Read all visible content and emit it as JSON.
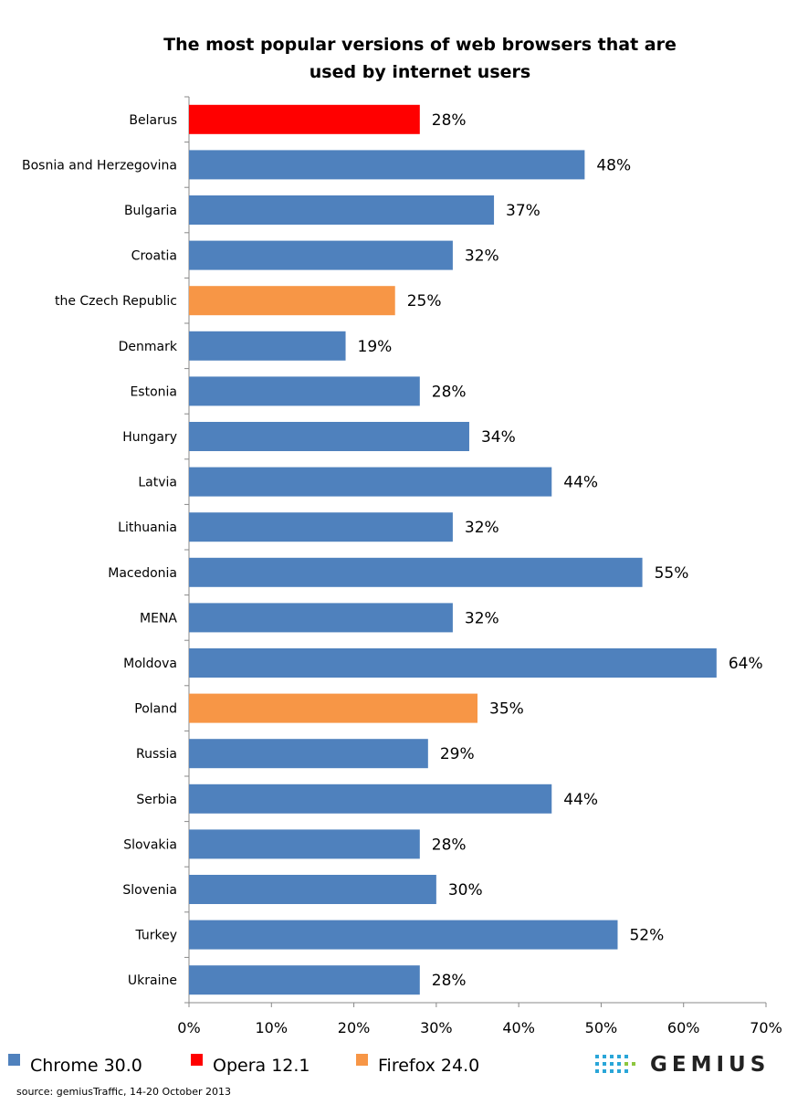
{
  "chart_data": {
    "type": "bar",
    "orientation": "horizontal",
    "title": "The most popular versions of web browsers that are used by internet users",
    "title_lines": [
      "The most popular versions of web browsers that are",
      "used by internet users"
    ],
    "categories": [
      "Belarus",
      "Bosnia and Herzegovina",
      "Bulgaria",
      "Croatia",
      "the Czech Republic",
      "Denmark",
      "Estonia",
      "Hungary",
      "Latvia",
      "Lithuania",
      "Macedonia",
      "MENA",
      "Moldova",
      "Poland",
      "Russia",
      "Serbia",
      "Slovakia",
      "Slovenia",
      "Turkey",
      "Ukraine"
    ],
    "values": [
      28,
      48,
      37,
      32,
      25,
      19,
      28,
      34,
      44,
      32,
      55,
      32,
      64,
      35,
      29,
      44,
      28,
      30,
      52,
      28
    ],
    "value_labels": [
      "28%",
      "48%",
      "37%",
      "32%",
      "25%",
      "19%",
      "28%",
      "34%",
      "44%",
      "32%",
      "55%",
      "32%",
      "64%",
      "35%",
      "29%",
      "44%",
      "28%",
      "30%",
      "52%",
      "28%"
    ],
    "browser": [
      "Opera 12.1",
      "Chrome 30.0",
      "Chrome 30.0",
      "Chrome 30.0",
      "Firefox 24.0",
      "Chrome 30.0",
      "Chrome 30.0",
      "Chrome 30.0",
      "Chrome 30.0",
      "Chrome 30.0",
      "Chrome 30.0",
      "Chrome 30.0",
      "Chrome 30.0",
      "Firefox 24.0",
      "Chrome 30.0",
      "Chrome 30.0",
      "Chrome 30.0",
      "Chrome 30.0",
      "Chrome 30.0",
      "Chrome 30.0"
    ],
    "xlim": [
      0,
      70
    ],
    "x_ticks": [
      "0%",
      "10%",
      "20%",
      "30%",
      "40%",
      "50%",
      "60%",
      "70%"
    ],
    "grid": false,
    "legend_placement": "bottom",
    "legend": [
      {
        "name": "Chrome 30.0",
        "color": "#4f81bd"
      },
      {
        "name": "Opera 12.1",
        "color": "#ff0000"
      },
      {
        "name": "Firefox 24.0",
        "color": "#f79646"
      }
    ]
  },
  "source_text": "source: gemiusTraffic, 14-20 October 2013",
  "logo_text": "GEMIUS"
}
